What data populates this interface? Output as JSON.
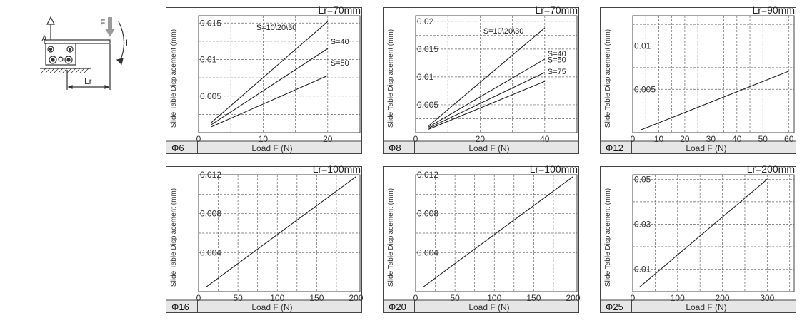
{
  "diagram": {
    "label_a": "A",
    "label_f": "F",
    "label_mr": "Mr",
    "label_lr": "Lr"
  },
  "chart_data": [
    {
      "type": "line",
      "title": "Lr=70mm",
      "xlabel": "Load F (N)",
      "ylabel": "Slide Table Displacement (mm)",
      "size_label": "Φ6",
      "xlim": [
        0,
        25
      ],
      "ylim": [
        0,
        0.016
      ],
      "xticks": [
        0,
        10,
        20
      ],
      "yticks": [
        0.005,
        0.01,
        0.015
      ],
      "xticklabels": [
        "0",
        "10",
        "20"
      ],
      "yticklabels": [
        "0.005",
        "0.01",
        "0.015"
      ],
      "grid": true,
      "series": [
        {
          "name": "S=10\\20\\30",
          "x": [
            2,
            20
          ],
          "y": [
            0.0014,
            0.0152
          ]
        },
        {
          "name": "S=40",
          "x": [
            2,
            20
          ],
          "y": [
            0.0011,
            0.0115
          ]
        },
        {
          "name": "S=50",
          "x": [
            2,
            20
          ],
          "y": [
            0.0008,
            0.0078
          ]
        }
      ]
    },
    {
      "type": "line",
      "title": "Lr=70mm",
      "xlabel": "Load F (N)",
      "ylabel": "Slide Table Displacement (mm)",
      "size_label": "Φ8",
      "xlim": [
        0,
        50
      ],
      "ylim": [
        0,
        0.021
      ],
      "xticks": [
        0,
        20,
        40
      ],
      "yticks": [
        0.005,
        0.01,
        0.015,
        0.02
      ],
      "xticklabels": [
        "0",
        "20",
        "40"
      ],
      "yticklabels": [
        "0.005",
        "0.01",
        "0.015",
        "0.02"
      ],
      "grid": true,
      "series": [
        {
          "name": "S=10\\20\\30",
          "x": [
            4,
            40
          ],
          "y": [
            0.0012,
            0.0188
          ]
        },
        {
          "name": "S=40",
          "x": [
            4,
            40
          ],
          "y": [
            0.001,
            0.0132
          ]
        },
        {
          "name": "S=50",
          "x": [
            4,
            40
          ],
          "y": [
            0.0008,
            0.0108
          ]
        },
        {
          "name": "S=75",
          "x": [
            4,
            40
          ],
          "y": [
            0.0006,
            0.0092
          ]
        }
      ]
    },
    {
      "type": "line",
      "title": "Lr=90mm",
      "xlabel": "Load F (N)",
      "ylabel": "Slide Table Displacement (mm)",
      "size_label": "Φ12",
      "xlim": [
        0,
        62
      ],
      "ylim": [
        0,
        0.0135
      ],
      "xticks": [
        0,
        10,
        20,
        30,
        40,
        50,
        60
      ],
      "yticks": [
        0.005,
        0.01
      ],
      "xticklabels": [
        "0",
        "10",
        "20",
        "30",
        "40",
        "50",
        "60"
      ],
      "yticklabels": [
        "0.005",
        "0.01"
      ],
      "grid": true,
      "series": [
        {
          "name": "",
          "x": [
            3,
            60
          ],
          "y": [
            0.0003,
            0.0071
          ]
        }
      ]
    },
    {
      "type": "line",
      "title": "Lr=100mm",
      "xlabel": "Load F (N)",
      "ylabel": "Slide Table Displacement (mm)",
      "size_label": "Φ16",
      "xlim": [
        0,
        205
      ],
      "ylim": [
        0,
        0.012
      ],
      "xticks": [
        0,
        50,
        100,
        150,
        200
      ],
      "yticks": [
        0.004,
        0.008,
        0.012
      ],
      "xticklabels": [
        "0",
        "50",
        "100",
        "150",
        "200"
      ],
      "yticklabels": [
        "0.004",
        "0.008",
        "0.012"
      ],
      "grid": true,
      "series": [
        {
          "name": "",
          "x": [
            10,
            200
          ],
          "y": [
            0.0005,
            0.0118
          ]
        }
      ]
    },
    {
      "type": "line",
      "title": "Lr=100mm",
      "xlabel": "Load F (N)",
      "ylabel": "Slide Table Displacement (mm)",
      "size_label": "Φ20",
      "xlim": [
        0,
        205
      ],
      "ylim": [
        0,
        0.012
      ],
      "xticks": [
        0,
        50,
        100,
        150,
        200
      ],
      "yticks": [
        0.004,
        0.008,
        0.012
      ],
      "xticklabels": [
        "0",
        "50",
        "100",
        "150",
        "200"
      ],
      "yticklabels": [
        "0.004",
        "0.008",
        "0.012"
      ],
      "grid": true,
      "series": [
        {
          "name": "",
          "x": [
            10,
            200
          ],
          "y": [
            0.0005,
            0.0118
          ]
        }
      ]
    },
    {
      "type": "line",
      "title": "Lr=200mm",
      "xlabel": "Load F (N)",
      "ylabel": "Slide Table Displacement (mm)",
      "size_label": "Φ25",
      "xlim": [
        0,
        360
      ],
      "ylim": [
        0,
        0.052
      ],
      "xticks": [
        0,
        100,
        200,
        300
      ],
      "yticks": [
        0.01,
        0.03,
        0.05
      ],
      "xticklabels": [
        "0",
        "100",
        "200",
        "300"
      ],
      "yticklabels": [
        "0.01",
        "0.03",
        "0.05"
      ],
      "grid": true,
      "series": [
        {
          "name": "",
          "x": [
            15,
            300
          ],
          "y": [
            0.002,
            0.05
          ]
        }
      ]
    }
  ]
}
